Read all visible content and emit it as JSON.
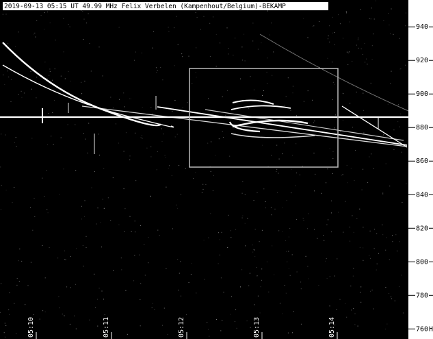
{
  "chart_data": {
    "type": "spectrogram",
    "title": "2019-09-13 05:15 UT 49.99 MHz Felix Verbelen (Kampenhout/Belgium)-BEKAMP",
    "categories": [
      "05:10",
      "05:11",
      "05:12",
      "05:13",
      "05:14"
    ],
    "ylim": [
      754,
      956
    ],
    "yticks": [
      760,
      780,
      800,
      820,
      840,
      860,
      880,
      900,
      920,
      940
    ],
    "y_unit": "Hz"
  }
}
